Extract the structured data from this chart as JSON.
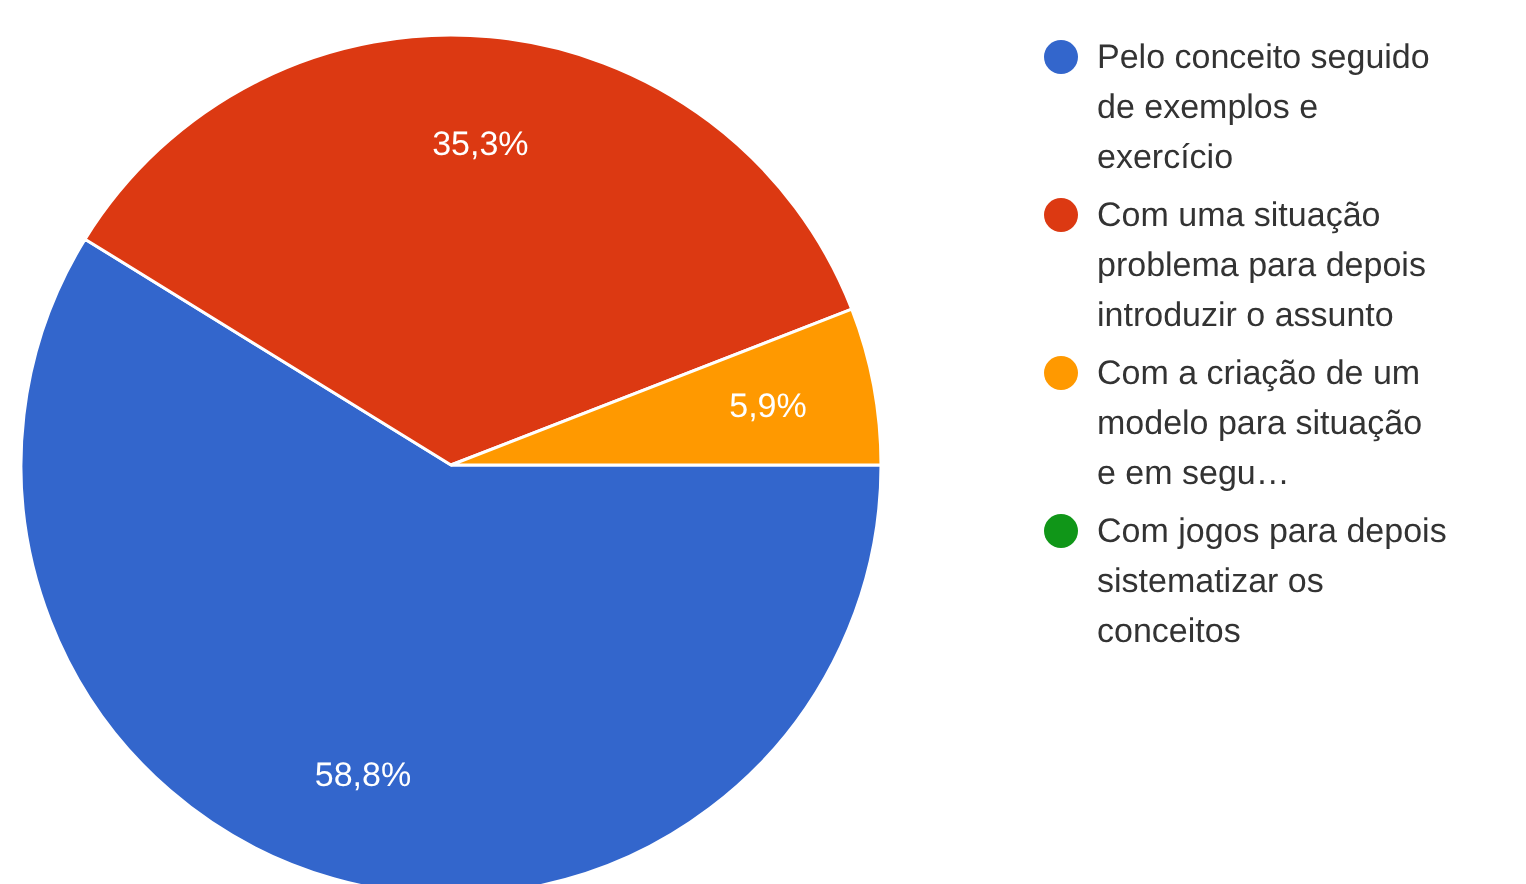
{
  "chart_data": {
    "type": "pie",
    "categories": [
      "Pelo conceito seguido de exemplos e exercício",
      "Com uma situação problema para depois introduzir o assunto",
      "Com a criação de um modelo para situação e em segu…",
      "Com jogos para depois sistematizar os conceitos"
    ],
    "values": [
      58.8,
      35.3,
      5.9,
      0
    ],
    "colors": [
      "#3366cc",
      "#dc3912",
      "#ff9900",
      "#109618"
    ],
    "value_labels": [
      "58,8%",
      "35,3%",
      "5,9%",
      null
    ],
    "legend": "right"
  }
}
